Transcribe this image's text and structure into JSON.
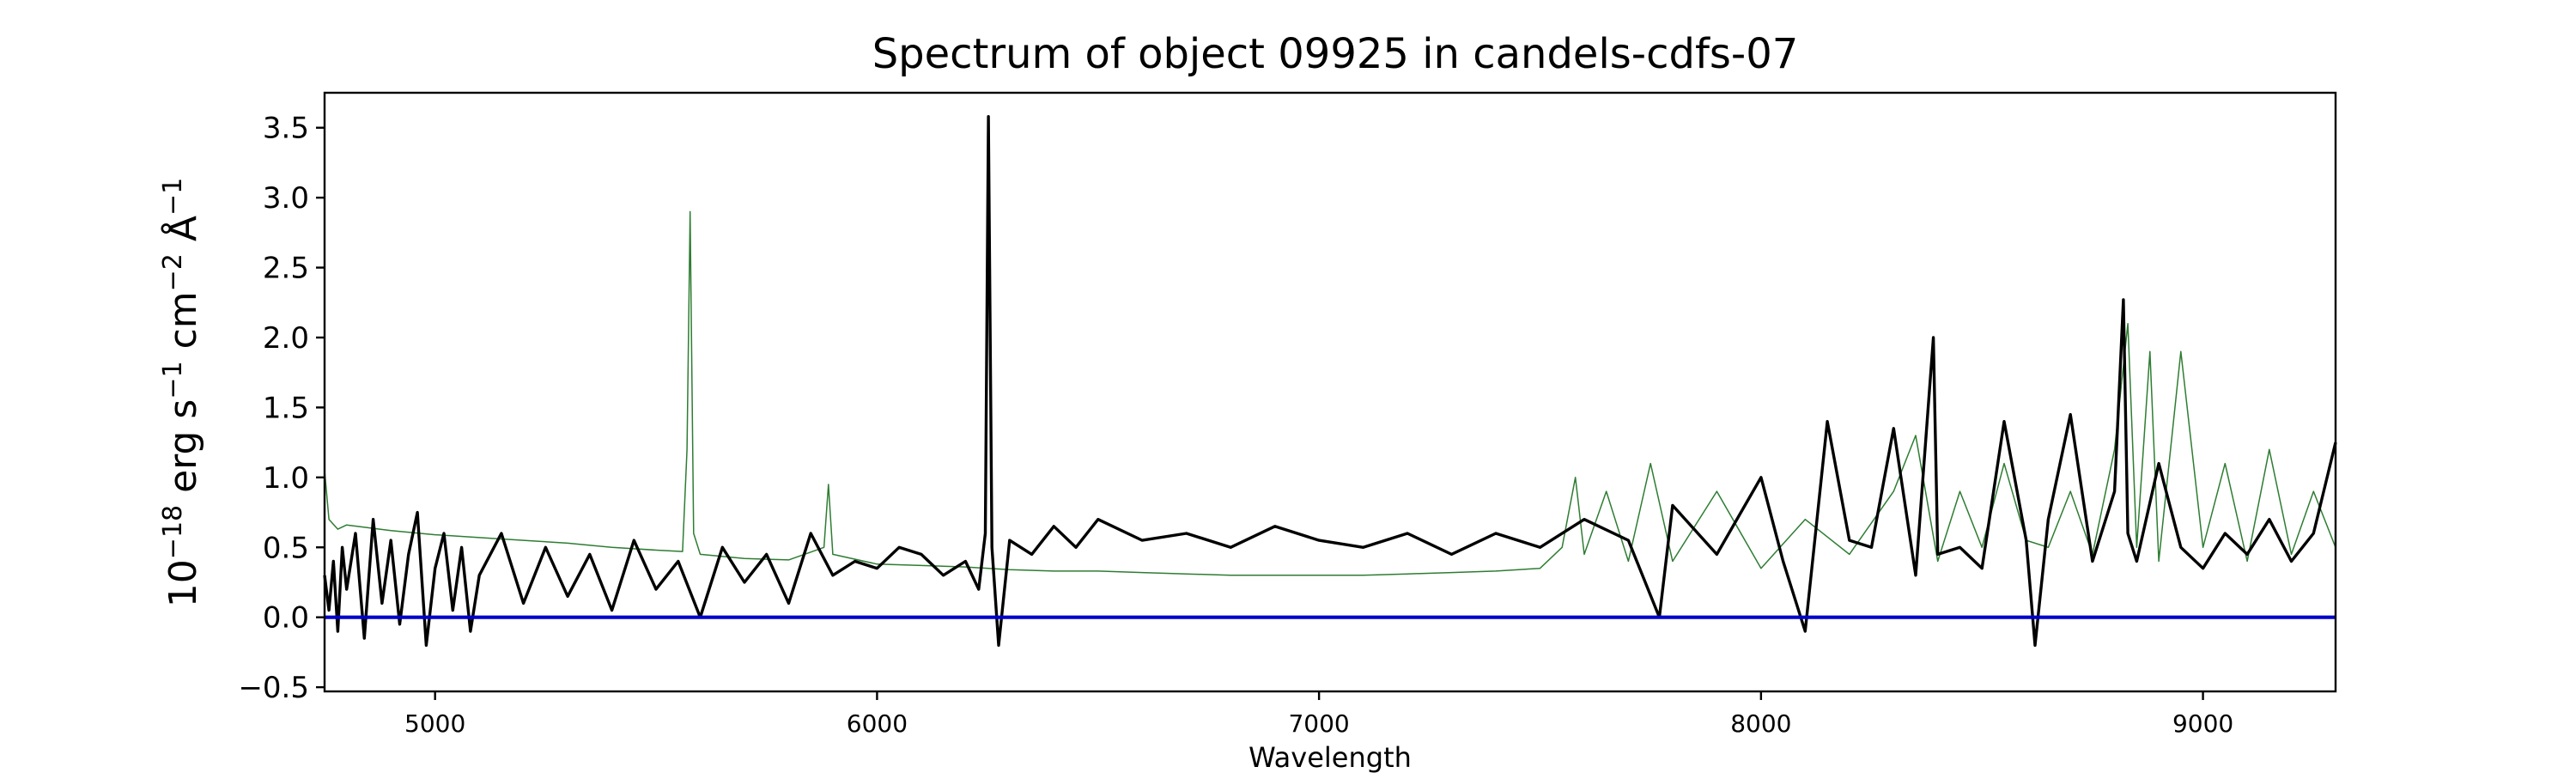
{
  "chart_data": {
    "type": "line",
    "title": "Spectrum of object 09925 in candels-cdfs-07",
    "xlabel": "Wavelength",
    "ylabel": {
      "base": "10",
      "exp1": "−18",
      "t1": " erg s",
      "exp2": "−1",
      "t2": " cm",
      "exp3": "−2",
      "t3": " Å",
      "exp4": "−1"
    },
    "xlim": [
      4750,
      9300
    ],
    "ylim": [
      -0.53,
      3.75
    ],
    "x_ticks": [
      5000,
      6000,
      7000,
      8000,
      9000
    ],
    "x_tick_labels": [
      "5000",
      "6000",
      "7000",
      "8000",
      "9000"
    ],
    "y_ticks": [
      -0.5,
      0.0,
      0.5,
      1.0,
      1.5,
      2.0,
      2.5,
      3.0,
      3.5
    ],
    "y_tick_labels": [
      "−0.5",
      "0.0",
      "0.5",
      "1.0",
      "1.5",
      "2.0",
      "2.5",
      "3.0",
      "3.5"
    ],
    "grid": false,
    "legend": "none",
    "colors": {
      "flux": "#000000",
      "error": "#2e7d32",
      "zero": "#0000cc"
    },
    "series": [
      {
        "role": "flux",
        "x": [
          4750,
          4760,
          4770,
          4780,
          4790,
          4800,
          4820,
          4840,
          4860,
          4880,
          4900,
          4920,
          4940,
          4960,
          4980,
          5000,
          5020,
          5040,
          5060,
          5080,
          5100,
          5150,
          5200,
          5250,
          5300,
          5350,
          5400,
          5450,
          5500,
          5550,
          5600,
          5650,
          5700,
          5750,
          5800,
          5850,
          5900,
          5950,
          6000,
          6050,
          6100,
          6150,
          6200,
          6230,
          6245,
          6252,
          6260,
          6275,
          6300,
          6350,
          6400,
          6450,
          6500,
          6600,
          6700,
          6800,
          6900,
          7000,
          7100,
          7200,
          7300,
          7400,
          7500,
          7600,
          7700,
          7770,
          7800,
          7900,
          8000,
          8050,
          8100,
          8150,
          8200,
          8250,
          8300,
          8350,
          8390,
          8400,
          8450,
          8500,
          8550,
          8600,
          8620,
          8650,
          8700,
          8750,
          8800,
          8820,
          8830,
          8850,
          8900,
          8950,
          9000,
          9050,
          9100,
          9150,
          9200,
          9250,
          9300
        ],
        "y": [
          0.3,
          0.05,
          0.4,
          -0.1,
          0.5,
          0.2,
          0.6,
          -0.15,
          0.7,
          0.1,
          0.55,
          -0.05,
          0.45,
          0.75,
          -0.2,
          0.35,
          0.6,
          0.05,
          0.5,
          -0.1,
          0.3,
          0.6,
          0.1,
          0.5,
          0.15,
          0.45,
          0.05,
          0.55,
          0.2,
          0.4,
          0.0,
          0.5,
          0.25,
          0.45,
          0.1,
          0.6,
          0.3,
          0.4,
          0.35,
          0.5,
          0.45,
          0.3,
          0.4,
          0.2,
          0.6,
          3.58,
          0.5,
          -0.2,
          0.55,
          0.45,
          0.65,
          0.5,
          0.7,
          0.55,
          0.6,
          0.5,
          0.65,
          0.55,
          0.5,
          0.6,
          0.45,
          0.6,
          0.5,
          0.7,
          0.55,
          0.0,
          0.8,
          0.45,
          1.0,
          0.4,
          -0.1,
          1.4,
          0.55,
          0.5,
          1.35,
          0.3,
          2.0,
          0.45,
          0.5,
          0.35,
          1.4,
          0.55,
          -0.2,
          0.7,
          1.45,
          0.4,
          0.9,
          2.27,
          0.6,
          0.4,
          1.1,
          0.5,
          0.35,
          0.6,
          0.45,
          0.7,
          0.4,
          0.6,
          1.25
        ]
      },
      {
        "role": "error",
        "x": [
          4750,
          4760,
          4780,
          4800,
          4850,
          4900,
          5000,
          5100,
          5200,
          5300,
          5400,
          5500,
          5560,
          5570,
          5577,
          5585,
          5600,
          5700,
          5800,
          5880,
          5890,
          5900,
          6000,
          6100,
          6200,
          6300,
          6400,
          6500,
          6600,
          6700,
          6800,
          6900,
          7000,
          7100,
          7200,
          7300,
          7400,
          7500,
          7550,
          7580,
          7600,
          7650,
          7700,
          7750,
          7800,
          7900,
          8000,
          8100,
          8200,
          8300,
          8350,
          8400,
          8450,
          8500,
          8550,
          8600,
          8650,
          8700,
          8750,
          8800,
          8830,
          8850,
          8880,
          8900,
          8950,
          9000,
          9050,
          9100,
          9150,
          9200,
          9250,
          9300
        ],
        "y": [
          1.05,
          0.7,
          0.63,
          0.66,
          0.64,
          0.62,
          0.59,
          0.57,
          0.55,
          0.53,
          0.5,
          0.48,
          0.47,
          1.2,
          2.9,
          0.6,
          0.45,
          0.42,
          0.41,
          0.5,
          0.95,
          0.45,
          0.38,
          0.37,
          0.36,
          0.34,
          0.33,
          0.33,
          0.32,
          0.31,
          0.3,
          0.3,
          0.3,
          0.3,
          0.31,
          0.32,
          0.33,
          0.35,
          0.5,
          1.0,
          0.45,
          0.9,
          0.4,
          1.1,
          0.4,
          0.9,
          0.35,
          0.7,
          0.45,
          0.9,
          1.3,
          0.4,
          0.9,
          0.5,
          1.1,
          0.55,
          0.5,
          0.9,
          0.45,
          1.2,
          2.1,
          0.5,
          1.9,
          0.4,
          1.9,
          0.5,
          1.1,
          0.4,
          1.2,
          0.45,
          0.9,
          0.5
        ]
      },
      {
        "role": "zero",
        "x": [
          4750,
          9300
        ],
        "y": [
          0,
          0
        ]
      }
    ]
  }
}
